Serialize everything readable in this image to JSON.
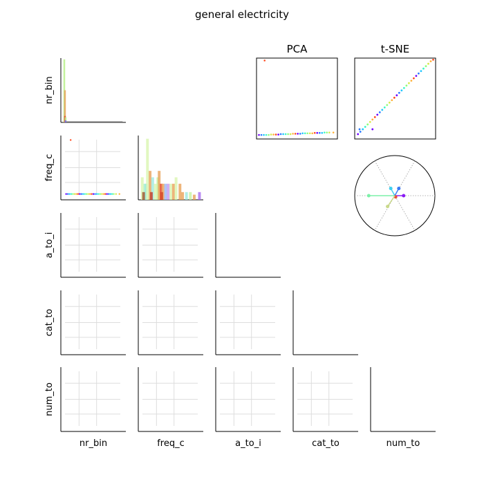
{
  "title": "general electricity",
  "variables": [
    "nr_bin",
    "freq_c",
    "a_to_i",
    "cat_to",
    "num_to"
  ],
  "chart_data": [
    {
      "type": "bar",
      "panel": "hist-nr_bin",
      "title": "",
      "grid": false,
      "bars": [
        {
          "x": 0.04,
          "h": 0.98,
          "color": "#b9f08a"
        },
        {
          "x": 0.05,
          "h": 0.5,
          "color": "#e8a35a"
        },
        {
          "x": 0.05,
          "h": 0.1,
          "color": "#e64a2e"
        },
        {
          "x": 0.06,
          "h": 0.08,
          "color": "#b9f08a"
        },
        {
          "x": 0.06,
          "h": 0.03,
          "color": "#6e5cf0"
        }
      ],
      "baseline_tail": 0.95
    },
    {
      "type": "bar",
      "panel": "hist-freq_c",
      "title": "",
      "grid": false,
      "bars": [
        {
          "x": 0.04,
          "h": 0.35,
          "color": "#d9f5b0"
        },
        {
          "x": 0.08,
          "h": 0.25,
          "color": "#a7f0c8"
        },
        {
          "x": 0.1,
          "h": 0.25,
          "color": "#9ee8e0"
        },
        {
          "x": 0.12,
          "h": 0.95,
          "color": "#d9f5b0"
        },
        {
          "x": 0.16,
          "h": 0.45,
          "color": "#e8a35a"
        },
        {
          "x": 0.2,
          "h": 0.35,
          "color": "#9ee8e0"
        },
        {
          "x": 0.24,
          "h": 0.25,
          "color": "#d9f5b0"
        },
        {
          "x": 0.28,
          "h": 0.35,
          "color": "#c6f2a0"
        },
        {
          "x": 0.3,
          "h": 0.45,
          "color": "#e8a35a"
        },
        {
          "x": 0.33,
          "h": 0.25,
          "color": "#e64a2e"
        },
        {
          "x": 0.36,
          "h": 0.25,
          "color": "#e8a35a"
        },
        {
          "x": 0.4,
          "h": 0.25,
          "color": "#9ab8f5"
        },
        {
          "x": 0.44,
          "h": 0.25,
          "color": "#c79af0"
        },
        {
          "x": 0.48,
          "h": 0.25,
          "color": "#d9f5b0"
        },
        {
          "x": 0.52,
          "h": 0.25,
          "color": "#e8a35a"
        },
        {
          "x": 0.56,
          "h": 0.35,
          "color": "#d9f5b0"
        },
        {
          "x": 0.62,
          "h": 0.25,
          "color": "#e8a35a"
        },
        {
          "x": 0.66,
          "h": 0.12,
          "color": "#e8a35a"
        },
        {
          "x": 0.72,
          "h": 0.12,
          "color": "#9ee8e0"
        },
        {
          "x": 0.78,
          "h": 0.12,
          "color": "#c6f2a0"
        },
        {
          "x": 0.84,
          "h": 0.08,
          "color": "#e8a35a"
        },
        {
          "x": 0.92,
          "h": 0.12,
          "color": "#a86ef0"
        },
        {
          "x": 0.18,
          "h": 0.12,
          "color": "#c0392b"
        },
        {
          "x": 0.34,
          "h": 0.12,
          "color": "#d24a2a"
        },
        {
          "x": 0.06,
          "h": 0.12,
          "color": "#a0522d"
        }
      ]
    },
    {
      "type": "scatter",
      "panel": "scatter-freq_c-vs-nr_bin",
      "title": "",
      "grid": true,
      "x": [
        0.02,
        0.05,
        0.08,
        0.11,
        0.14,
        0.17,
        0.2,
        0.23,
        0.26,
        0.29,
        0.32,
        0.35,
        0.38,
        0.41,
        0.44,
        0.47,
        0.5,
        0.53,
        0.56,
        0.59,
        0.62,
        0.65,
        0.68,
        0.71,
        0.74,
        0.77,
        0.8,
        0.83,
        0.86,
        0.9,
        0.96,
        0.1
      ],
      "y": [
        0.09,
        0.09,
        0.09,
        0.09,
        0.09,
        0.09,
        0.09,
        0.09,
        0.09,
        0.09,
        0.09,
        0.09,
        0.09,
        0.09,
        0.09,
        0.09,
        0.09,
        0.09,
        0.09,
        0.09,
        0.09,
        0.09,
        0.09,
        0.09,
        0.09,
        0.09,
        0.09,
        0.09,
        0.09,
        0.09,
        0.09,
        0.93
      ]
    },
    {
      "type": "scatter",
      "panel": "PCA",
      "title": "PCA",
      "grid": false,
      "x": [
        0.03,
        0.06,
        0.09,
        0.12,
        0.15,
        0.18,
        0.21,
        0.24,
        0.27,
        0.3,
        0.33,
        0.36,
        0.39,
        0.42,
        0.45,
        0.48,
        0.51,
        0.54,
        0.57,
        0.6,
        0.63,
        0.66,
        0.69,
        0.72,
        0.75,
        0.78,
        0.81,
        0.84,
        0.87,
        0.9,
        0.95,
        0.1
      ],
      "y": [
        0.05,
        0.05,
        0.05,
        0.05,
        0.05,
        0.055,
        0.055,
        0.055,
        0.055,
        0.06,
        0.06,
        0.06,
        0.06,
        0.06,
        0.065,
        0.065,
        0.065,
        0.065,
        0.07,
        0.07,
        0.07,
        0.07,
        0.07,
        0.075,
        0.075,
        0.075,
        0.075,
        0.08,
        0.08,
        0.08,
        0.08,
        0.97
      ]
    },
    {
      "type": "scatter",
      "panel": "t-SNE",
      "title": "t-SNE",
      "grid": false,
      "x": [
        0.04,
        0.07,
        0.1,
        0.13,
        0.16,
        0.19,
        0.22,
        0.25,
        0.28,
        0.31,
        0.34,
        0.37,
        0.4,
        0.43,
        0.46,
        0.49,
        0.52,
        0.55,
        0.58,
        0.61,
        0.64,
        0.67,
        0.7,
        0.73,
        0.76,
        0.79,
        0.82,
        0.85,
        0.88,
        0.91,
        0.94,
        0.97,
        0.22,
        0.06
      ],
      "y": [
        0.06,
        0.09,
        0.12,
        0.15,
        0.18,
        0.21,
        0.24,
        0.27,
        0.3,
        0.33,
        0.36,
        0.39,
        0.42,
        0.45,
        0.48,
        0.51,
        0.54,
        0.57,
        0.6,
        0.63,
        0.66,
        0.69,
        0.72,
        0.75,
        0.78,
        0.81,
        0.84,
        0.87,
        0.9,
        0.93,
        0.96,
        0.98,
        0.12,
        0.12
      ]
    },
    {
      "type": "other",
      "panel": "correlation-circle",
      "title": "",
      "vectors": [
        {
          "x": -0.65,
          "y": 0.0,
          "color": "#7CF0A8"
        },
        {
          "x": -0.1,
          "y": 0.18,
          "color": "#3FD0F0"
        },
        {
          "x": 0.1,
          "y": 0.18,
          "color": "#3A7AF5"
        },
        {
          "x": 0.22,
          "y": 0.0,
          "color": "#8A1AF5"
        },
        {
          "x": 0.02,
          "y": -0.03,
          "color": "#E8503A"
        },
        {
          "x": -0.18,
          "y": -0.27,
          "color": "#C9D98A"
        }
      ]
    }
  ],
  "colors": {
    "axis": "#000000",
    "grid": "#dddddd",
    "palette": [
      "#6e00ff",
      "#2b7bff",
      "#1fc6ff",
      "#3df5c8",
      "#8cff7a",
      "#d8e84a",
      "#ffb23a",
      "#ff4a1f"
    ]
  }
}
